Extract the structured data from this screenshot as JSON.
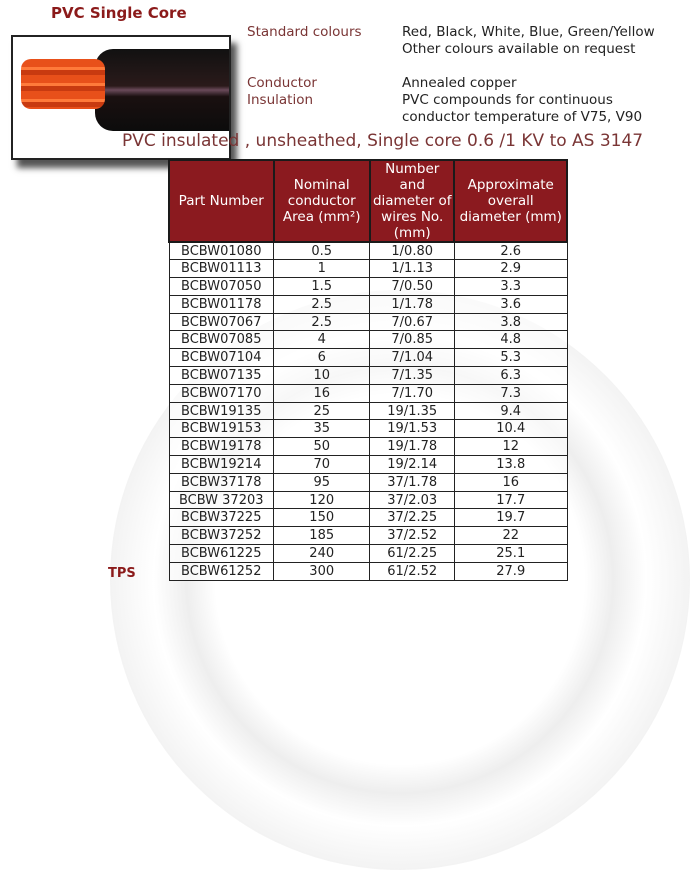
{
  "title": "PVC Single Core",
  "specs": [
    {
      "label": "Standard colours",
      "value": "Red, Black, White, Blue, Green/Yellow",
      "value2": "Other colours available on request"
    },
    {
      "label": "Conductor",
      "value": "Annealed copper"
    },
    {
      "label": "Insulation",
      "value": "PVC compounds for continuous",
      "value2": "conductor temperature of V75, V90"
    }
  ],
  "subtitle": "PVC insulated , unsheathed, Single core 0.6 /1 KV to AS 3147",
  "table": {
    "headers": [
      "Part Number",
      "Nominal conductor Area (mm²)",
      "Number and diameter of wires No. (mm)",
      "Approximate overall diameter (mm)"
    ],
    "rows": [
      [
        "BCBW01080",
        "0.5",
        "1/0.80",
        "2.6"
      ],
      [
        "BCBW01113",
        "1",
        "1/1.13",
        "2.9"
      ],
      [
        "BCBW07050",
        "1.5",
        "7/0.50",
        "3.3"
      ],
      [
        "BCBW01178",
        "2.5",
        "1/1.78",
        "3.6"
      ],
      [
        "BCBW07067",
        "2.5",
        "7/0.67",
        "3.8"
      ],
      [
        "BCBW07085",
        "4",
        "7/0.85",
        "4.8"
      ],
      [
        "BCBW07104",
        "6",
        "7/1.04",
        "5.3"
      ],
      [
        "BCBW07135",
        "10",
        "7/1.35",
        "6.3"
      ],
      [
        "BCBW07170",
        "16",
        "7/1.70",
        "7.3"
      ],
      [
        "BCBW19135",
        "25",
        "19/1.35",
        "9.4"
      ],
      [
        "BCBW19153",
        "35",
        "19/1.53",
        "10.4"
      ],
      [
        "BCBW19178",
        "50",
        "19/1.78",
        "12"
      ],
      [
        "BCBW19214",
        "70",
        "19/2.14",
        "13.8"
      ],
      [
        "BCBW37178",
        "95",
        "37/1.78",
        "16"
      ],
      [
        "BCBW 37203",
        "120",
        "37/2.03",
        "17.7"
      ],
      [
        "BCBW37225",
        "150",
        "37/2.25",
        "19.7"
      ],
      [
        "BCBW37252",
        "185",
        "37/2.52",
        "22"
      ],
      [
        "BCBW61225",
        "240",
        "61/2.25",
        "25.1"
      ],
      [
        "BCBW61252",
        "300",
        "61/2.52",
        "27.9"
      ]
    ]
  },
  "footer_label": "TPS",
  "colors": {
    "accent": "#8b1a1f",
    "label": "#7a3535"
  }
}
